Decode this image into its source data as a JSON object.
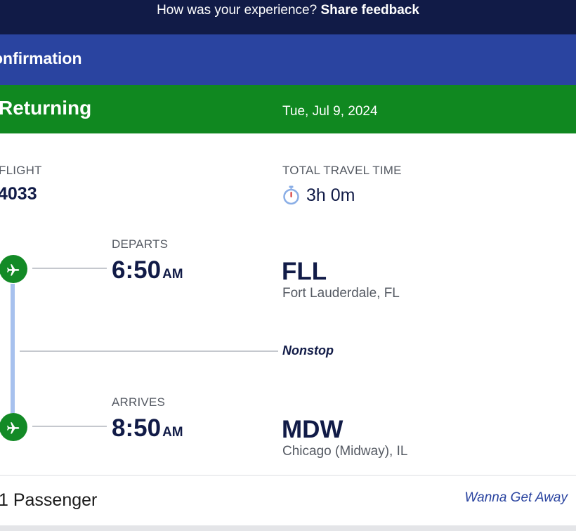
{
  "feedback": {
    "prompt": "How was your experience?",
    "link": "Share feedback"
  },
  "header": {
    "title": "onfirmation"
  },
  "trip": {
    "direction": "Returning",
    "date": "Tue, Jul 9, 2024"
  },
  "flight": {
    "label": "FLIGHT",
    "number": "4033"
  },
  "travel_time": {
    "label": "TOTAL TRAVEL TIME",
    "value": "3h 0m",
    "icon": "stopwatch-icon"
  },
  "departure": {
    "label": "DEPARTS",
    "time": "6:50",
    "ampm": "AM",
    "code": "FLL",
    "city": "Fort Lauderdale, FL",
    "icon": "plane-icon"
  },
  "stops": {
    "label": "Nonstop"
  },
  "arrival": {
    "label": "ARRIVES",
    "time": "8:50",
    "ampm": "AM",
    "code": "MDW",
    "city": "Chicago (Midway), IL",
    "icon": "plane-icon"
  },
  "footer": {
    "passengers": "1 Passenger",
    "fare_type": "Wanna Get Away"
  },
  "colors": {
    "feedback_bg": "#111b47",
    "header_bg": "#2a44a0",
    "returning_bg": "#108820",
    "plane_circle": "#138a26",
    "timeline": "#a7c1ee",
    "text_dark": "#111b47"
  }
}
